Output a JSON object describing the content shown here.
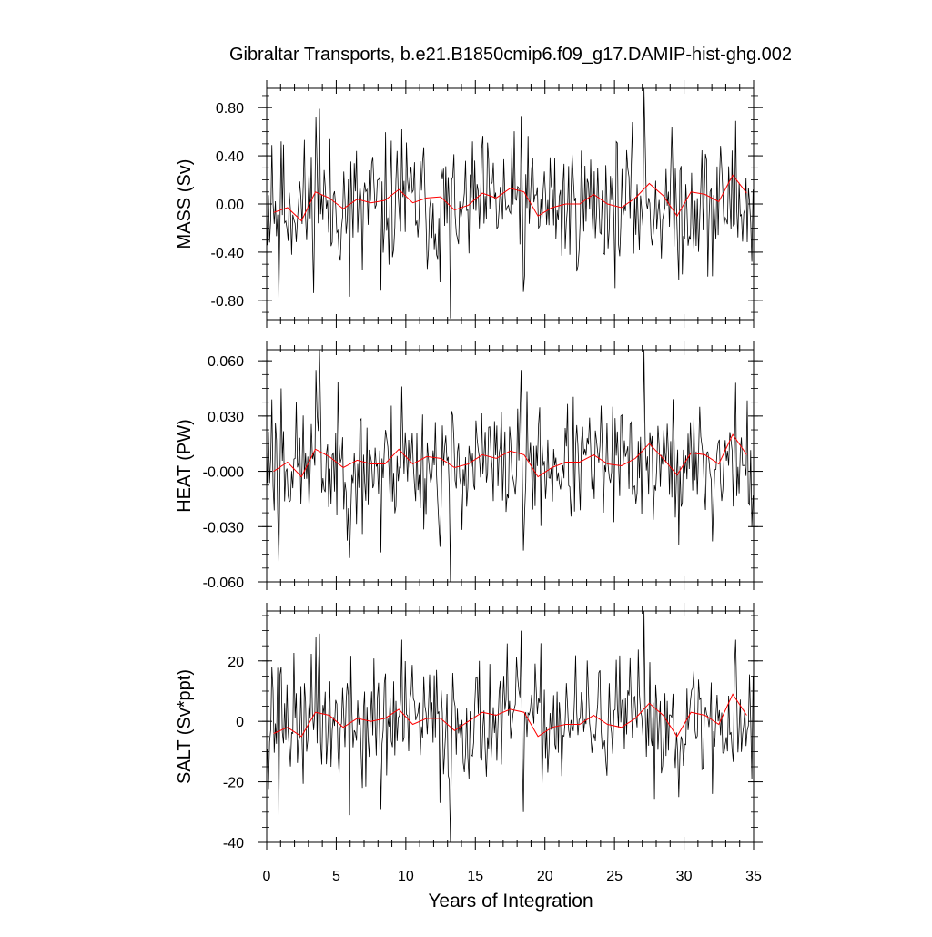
{
  "figure": {
    "title": "Gibraltar Transports, b.e21.B1850cmip6.f09_g17.DAMIP-hist-ghg.002",
    "xlabel": "Years of Integration"
  },
  "colors": {
    "monthly": "#000000",
    "annual": "#ff0000"
  },
  "chart_data": [
    {
      "type": "line",
      "ylabel": "MASS (Sv)",
      "xlim": [
        0,
        35
      ],
      "ylim": [
        -0.96,
        0.96
      ],
      "yticks": [
        0.8,
        0.4,
        0.0,
        -0.4,
        -0.8
      ],
      "ytick_labels": [
        "0.80",
        "0.40",
        "0.00",
        "-0.40",
        "-0.80"
      ],
      "annual_x": [
        0.5,
        1.5,
        2.5,
        3.5,
        4.5,
        5.5,
        6.5,
        7.5,
        8.5,
        9.5,
        10.5,
        11.5,
        12.5,
        13.5,
        14.5,
        15.5,
        16.5,
        17.5,
        18.5,
        19.5,
        20.5,
        21.5,
        22.5,
        23.5,
        24.5,
        25.5,
        26.5,
        27.5,
        28.5,
        29.5,
        30.5,
        31.5,
        32.5,
        33.5,
        34.5
      ],
      "annual_values": [
        -0.07,
        -0.03,
        -0.14,
        0.1,
        0.05,
        -0.04,
        0.04,
        0.01,
        0.03,
        0.12,
        0.01,
        0.05,
        0.06,
        -0.05,
        -0.01,
        0.09,
        0.05,
        0.13,
        0.1,
        -0.1,
        -0.03,
        0.0,
        0.0,
        0.08,
        0.0,
        -0.03,
        0.05,
        0.17,
        0.07,
        -0.1,
        0.1,
        0.08,
        0.02,
        0.24,
        0.09
      ],
      "anomalies": [
        {
          "month": 4,
          "v": 0.49
        },
        {
          "month": 10,
          "v": -0.78
        },
        {
          "month": 12,
          "v": 0.52
        },
        {
          "month": 34,
          "v": -0.3
        },
        {
          "month": 42,
          "v": 0.72
        },
        {
          "month": 45,
          "v": 0.79
        },
        {
          "month": 55,
          "v": -0.35
        },
        {
          "month": 71,
          "v": -0.77
        },
        {
          "month": 82,
          "v": -0.55
        },
        {
          "month": 98,
          "v": -0.72
        },
        {
          "month": 116,
          "v": 0.62
        },
        {
          "month": 149,
          "v": -0.65
        },
        {
          "month": 158,
          "v": -0.95
        },
        {
          "month": 167,
          "v": -0.12
        },
        {
          "month": 219,
          "v": 0.73
        },
        {
          "month": 221,
          "v": -0.73
        },
        {
          "month": 257,
          "v": -0.37
        },
        {
          "month": 325,
          "v": 0.97
        },
        {
          "month": 355,
          "v": -0.63
        },
        {
          "month": 384,
          "v": -0.6
        },
        {
          "month": 404,
          "v": 0.69
        },
        {
          "month": 418,
          "v": -0.48
        }
      ],
      "base": 0.0,
      "amp": 0.27,
      "seed": 11
    },
    {
      "type": "line",
      "ylabel": "HEAT (PW)",
      "xlim": [
        0,
        35
      ],
      "ylim": [
        -0.06,
        0.066
      ],
      "yticks": [
        0.06,
        0.03,
        0.0,
        -0.03,
        -0.06
      ],
      "ytick_labels": [
        "0.060",
        "0.030",
        "-0.000",
        "-0.030",
        "-0.060"
      ],
      "annual_x": [
        0.5,
        1.5,
        2.5,
        3.5,
        4.5,
        5.5,
        6.5,
        7.5,
        8.5,
        9.5,
        10.5,
        11.5,
        12.5,
        13.5,
        14.5,
        15.5,
        16.5,
        17.5,
        18.5,
        19.5,
        20.5,
        21.5,
        22.5,
        23.5,
        24.5,
        25.5,
        26.5,
        27.5,
        28.5,
        29.5,
        30.5,
        31.5,
        32.5,
        33.5,
        34.5
      ],
      "annual_values": [
        0.0,
        0.005,
        -0.003,
        0.012,
        0.008,
        0.002,
        0.006,
        0.004,
        0.004,
        0.012,
        0.004,
        0.008,
        0.007,
        0.002,
        0.004,
        0.009,
        0.007,
        0.011,
        0.009,
        -0.003,
        0.002,
        0.005,
        0.005,
        0.009,
        0.004,
        0.003,
        0.007,
        0.015,
        0.007,
        -0.002,
        0.01,
        0.009,
        0.004,
        0.02,
        0.009
      ],
      "anomalies": [
        {
          "month": 4,
          "v": 0.039
        },
        {
          "month": 10,
          "v": -0.049
        },
        {
          "month": 12,
          "v": 0.045
        },
        {
          "month": 42,
          "v": 0.055
        },
        {
          "month": 45,
          "v": 0.066
        },
        {
          "month": 55,
          "v": -0.018
        },
        {
          "month": 71,
          "v": -0.047
        },
        {
          "month": 82,
          "v": -0.034
        },
        {
          "month": 98,
          "v": -0.044
        },
        {
          "month": 116,
          "v": 0.046
        },
        {
          "month": 149,
          "v": -0.041
        },
        {
          "month": 158,
          "v": -0.06
        },
        {
          "month": 219,
          "v": 0.055
        },
        {
          "month": 221,
          "v": -0.043
        },
        {
          "month": 325,
          "v": 0.066
        },
        {
          "month": 355,
          "v": -0.04
        },
        {
          "month": 384,
          "v": -0.038
        },
        {
          "month": 404,
          "v": 0.048
        },
        {
          "month": 418,
          "v": -0.03
        }
      ],
      "base": 0.004,
      "amp": 0.016,
      "seed": 23
    },
    {
      "type": "line",
      "ylabel": "SALT (Sv*ppt)",
      "xlim": [
        0,
        35
      ],
      "ylim": [
        -40,
        36.5
      ],
      "yticks": [
        20,
        0,
        -20,
        -40
      ],
      "ytick_labels": [
        "20",
        "0",
        "-20",
        "-40"
      ],
      "annual_x": [
        0.5,
        1.5,
        2.5,
        3.5,
        4.5,
        5.5,
        6.5,
        7.5,
        8.5,
        9.5,
        10.5,
        11.5,
        12.5,
        13.5,
        14.5,
        15.5,
        16.5,
        17.5,
        18.5,
        19.5,
        20.5,
        21.5,
        22.5,
        23.5,
        24.5,
        25.5,
        26.5,
        27.5,
        28.5,
        29.5,
        30.5,
        31.5,
        32.5,
        33.5,
        34.5
      ],
      "annual_values": [
        -4,
        -2,
        -5,
        3,
        2,
        -2,
        1,
        0,
        1,
        4,
        -1,
        1,
        1,
        -3,
        0,
        3,
        2,
        4,
        3,
        -5,
        -2,
        -1,
        -1,
        2,
        -1,
        -2,
        1,
        6,
        2,
        -5,
        3,
        2,
        -1,
        9,
        2
      ],
      "anomalies": [
        {
          "month": 4,
          "v": 18
        },
        {
          "month": 10,
          "v": -31
        },
        {
          "month": 12,
          "v": 18
        },
        {
          "month": 34,
          "v": -10
        },
        {
          "month": 42,
          "v": 28
        },
        {
          "month": 45,
          "v": 29
        },
        {
          "month": 55,
          "v": -15
        },
        {
          "month": 71,
          "v": -31
        },
        {
          "month": 82,
          "v": -22
        },
        {
          "month": 98,
          "v": -29
        },
        {
          "month": 116,
          "v": 27
        },
        {
          "month": 149,
          "v": -27
        },
        {
          "month": 158,
          "v": -40
        },
        {
          "month": 219,
          "v": 30
        },
        {
          "month": 221,
          "v": -30
        },
        {
          "month": 325,
          "v": 37
        },
        {
          "month": 355,
          "v": -25
        },
        {
          "month": 384,
          "v": -24
        },
        {
          "month": 404,
          "v": 27
        },
        {
          "month": 418,
          "v": -19
        }
      ],
      "base": 0.0,
      "amp": 10.0,
      "seed": 37
    }
  ],
  "xaxis": {
    "ticks": [
      0,
      5,
      10,
      15,
      20,
      25,
      30,
      35
    ],
    "tick_labels": [
      "0",
      "5",
      "10",
      "15",
      "20",
      "25",
      "30",
      "35"
    ]
  }
}
